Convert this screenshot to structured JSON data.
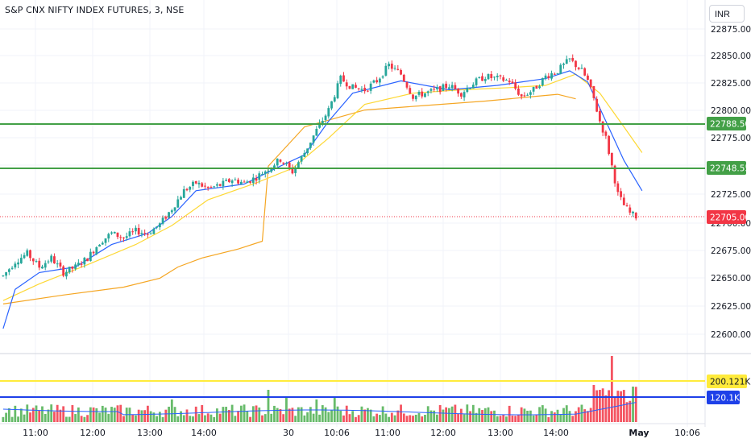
{
  "header": {
    "title": "S&P CNX NIFTY INDEX FUTURES, 3, NSE",
    "currency": "INR"
  },
  "colors": {
    "up": "#26a69a",
    "up_volume": "#4caf50",
    "down": "#f23645",
    "ema_fast": "#2962ff",
    "ema_slow": "#fdd835",
    "vwap": "#f5a623",
    "hline": "#43a047",
    "vol_line_yellow": "#ffeb3b",
    "vol_line_blue": "#1e40e8",
    "current_price": "#f23645"
  },
  "price_axis": {
    "ticks": [
      "22875.00",
      "22850.00",
      "22825.00",
      "22800.00",
      "22775.00",
      "22725.00",
      "22700.00",
      "22675.00",
      "22650.00",
      "22625.00",
      "22600.00"
    ]
  },
  "time_axis": {
    "labels": [
      "11:00",
      "12:00",
      "13:00",
      "14:00",
      "30",
      "10:06",
      "11:00",
      "12:00",
      "13:00",
      "14:00",
      "May",
      "10:06"
    ]
  },
  "badges": {
    "level_1": "22788.50",
    "level_2": "22748.55",
    "current_price": "22705.00",
    "vol_level_1": "200.121K",
    "vol_level_2": "120.1K"
  },
  "chart_data": {
    "type": "candlestick",
    "interval": "3m",
    "ylim": [
      22580,
      22883
    ],
    "horizontal_levels": [
      22788.5,
      22748.55
    ],
    "current_price": 22705.0,
    "volume_levels": [
      200121,
      120100
    ],
    "sessions": [
      "day1",
      "30",
      "May"
    ],
    "price_path": [
      [
        0,
        22652
      ],
      [
        4,
        22665
      ],
      [
        8,
        22672
      ],
      [
        12,
        22660
      ],
      [
        16,
        22668
      ],
      [
        20,
        22655
      ],
      [
        24,
        22660
      ],
      [
        28,
        22668
      ],
      [
        32,
        22682
      ],
      [
        36,
        22690
      ],
      [
        40,
        22686
      ],
      [
        44,
        22692
      ],
      [
        48,
        22690
      ],
      [
        52,
        22698
      ],
      [
        56,
        22712
      ],
      [
        60,
        22728
      ],
      [
        64,
        22735
      ],
      [
        68,
        22730
      ],
      [
        72,
        22733
      ],
      [
        76,
        22738
      ],
      [
        80,
        22735
      ],
      [
        84,
        22740
      ],
      [
        88,
        22748
      ],
      [
        92,
        22756
      ],
      [
        96,
        22745
      ],
      [
        100,
        22762
      ],
      [
        104,
        22782
      ],
      [
        108,
        22800
      ],
      [
        112,
        22828
      ],
      [
        116,
        22820
      ],
      [
        120,
        22818
      ],
      [
        124,
        22826
      ],
      [
        128,
        22840
      ],
      [
        132,
        22832
      ],
      [
        136,
        22812
      ],
      [
        140,
        22815
      ],
      [
        144,
        22818
      ],
      [
        148,
        22822
      ],
      [
        152,
        22815
      ],
      [
        156,
        22824
      ],
      [
        160,
        22830
      ],
      [
        164,
        22828
      ],
      [
        168,
        22826
      ],
      [
        172,
        22812
      ],
      [
        176,
        22818
      ],
      [
        180,
        22830
      ],
      [
        184,
        22835
      ],
      [
        188,
        22845
      ],
      [
        190,
        22840
      ],
      [
        192,
        22835
      ],
      [
        194,
        22826
      ],
      [
        196,
        22810
      ],
      [
        198,
        22790
      ],
      [
        200,
        22775
      ],
      [
        202,
        22750
      ],
      [
        204,
        22725
      ],
      [
        206,
        22715
      ],
      [
        208,
        22708
      ],
      [
        210,
        22705
      ]
    ],
    "vwap_path": [
      [
        0,
        22627
      ],
      [
        20,
        22635
      ],
      [
        40,
        22642
      ],
      [
        52,
        22650
      ],
      [
        58,
        22660
      ],
      [
        66,
        22668
      ],
      [
        78,
        22676
      ],
      [
        86,
        22683
      ],
      [
        88,
        22750
      ],
      [
        100,
        22785
      ],
      [
        120,
        22800
      ],
      [
        140,
        22804
      ],
      [
        160,
        22808
      ],
      [
        176,
        22812
      ],
      [
        184,
        22814
      ],
      [
        190,
        22810
      ]
    ],
    "ema_fast_path": [
      [
        0,
        22605
      ],
      [
        4,
        22640
      ],
      [
        12,
        22655
      ],
      [
        24,
        22660
      ],
      [
        36,
        22680
      ],
      [
        48,
        22690
      ],
      [
        56,
        22705
      ],
      [
        64,
        22728
      ],
      [
        80,
        22734
      ],
      [
        92,
        22750
      ],
      [
        100,
        22760
      ],
      [
        108,
        22790
      ],
      [
        116,
        22815
      ],
      [
        132,
        22826
      ],
      [
        148,
        22818
      ],
      [
        164,
        22822
      ],
      [
        180,
        22828
      ],
      [
        188,
        22835
      ],
      [
        194,
        22825
      ],
      [
        200,
        22790
      ],
      [
        206,
        22755
      ],
      [
        212,
        22728
      ]
    ],
    "ema_slow_path": [
      [
        0,
        22630
      ],
      [
        12,
        22645
      ],
      [
        28,
        22662
      ],
      [
        44,
        22680
      ],
      [
        56,
        22697
      ],
      [
        68,
        22720
      ],
      [
        84,
        22735
      ],
      [
        96,
        22748
      ],
      [
        108,
        22775
      ],
      [
        120,
        22805
      ],
      [
        136,
        22815
      ],
      [
        152,
        22818
      ],
      [
        168,
        22820
      ],
      [
        180,
        22822
      ],
      [
        190,
        22832
      ],
      [
        198,
        22815
      ],
      [
        206,
        22785
      ],
      [
        212,
        22762
      ]
    ]
  }
}
